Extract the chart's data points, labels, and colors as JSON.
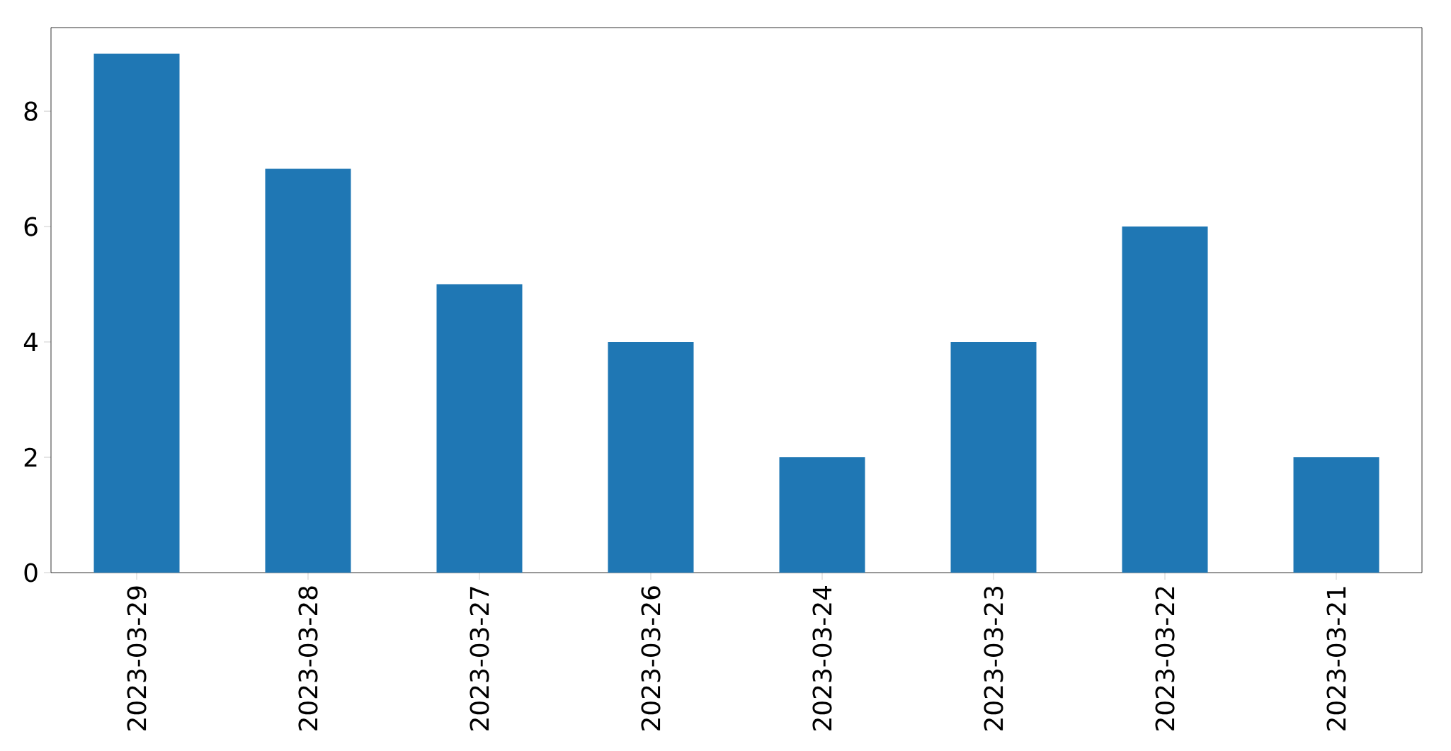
{
  "chart_data": {
    "type": "bar",
    "categories": [
      "2023-03-29",
      "2023-03-28",
      "2023-03-27",
      "2023-03-26",
      "2023-03-24",
      "2023-03-23",
      "2023-03-22",
      "2023-03-21"
    ],
    "values": [
      9,
      7,
      5,
      4,
      2,
      4,
      6,
      2
    ],
    "color": "#1f77b4",
    "ylim": [
      0,
      9.45
    ],
    "yticks": [
      0,
      2,
      4,
      6,
      8
    ],
    "grid": false
  }
}
